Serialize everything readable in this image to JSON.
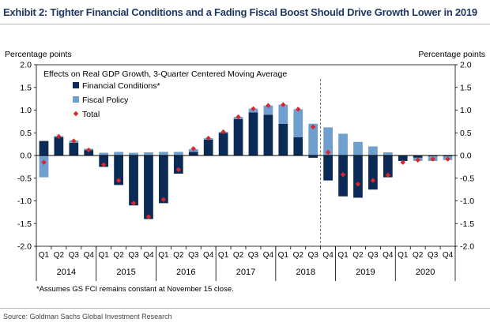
{
  "title": "Exhibit 2: Tighter Financial Conditions and a Fading Fiscal Boost Should Drive Growth Lower in 2019",
  "source": "Source: Goldman Sachs Global Investment Research",
  "colors": {
    "financial": "#0b2a55",
    "fiscal": "#6f9fcf",
    "total": "#d7262e",
    "axis": "#000000",
    "divider": "#555555"
  },
  "chart_data": {
    "type": "bar",
    "subtitle": "Effects on Real GDP Growth, 3-Quarter Centered Moving Average",
    "ylabel_left": "Percentage points",
    "ylabel_right": "Percentage points",
    "ylim": [
      -2.0,
      2.0
    ],
    "yticks": [
      "2.0",
      "1.5",
      "1.0",
      "0.5",
      "0.0",
      "-0.5",
      "-1.0",
      "-1.5",
      "-2.0"
    ],
    "ytick_values": [
      2.0,
      1.5,
      1.0,
      0.5,
      0.0,
      -0.5,
      -1.0,
      -1.5,
      -2.0
    ],
    "categories": [
      "Q1",
      "Q2",
      "Q3",
      "Q4",
      "Q1",
      "Q2",
      "Q3",
      "Q4",
      "Q1",
      "Q2",
      "Q3",
      "Q4",
      "Q1",
      "Q2",
      "Q3",
      "Q4",
      "Q1",
      "Q2",
      "Q3",
      "Q4",
      "Q1",
      "Q2",
      "Q3",
      "Q4",
      "Q1",
      "Q2",
      "Q3",
      "Q4"
    ],
    "years": [
      "2014",
      "2015",
      "2016",
      "2017",
      "2018",
      "2019",
      "2020"
    ],
    "forecast_note": "*Assumes GS FCI remains constant at November 15 close.",
    "grid": false,
    "legend_position": "top-left",
    "series": [
      {
        "name": "Financial Conditions*",
        "kind": "stacked-bar",
        "values": [
          0.32,
          0.4,
          0.28,
          0.12,
          -0.25,
          -0.65,
          -1.1,
          -1.4,
          -1.05,
          -0.4,
          0.08,
          0.35,
          0.5,
          0.8,
          0.95,
          0.9,
          0.7,
          0.4,
          -0.05,
          -0.55,
          -0.9,
          -0.93,
          -0.75,
          -0.48,
          -0.12,
          -0.05,
          -0.02,
          -0.02
        ]
      },
      {
        "name": "Fiscal Policy",
        "kind": "stacked-bar",
        "values": [
          -0.48,
          0.03,
          0.05,
          0.03,
          0.06,
          0.08,
          0.06,
          0.07,
          0.08,
          0.08,
          0.06,
          0.03,
          0.02,
          0.05,
          0.08,
          0.2,
          0.42,
          0.62,
          0.7,
          0.62,
          0.48,
          0.3,
          0.2,
          0.07,
          0.0,
          -0.07,
          -0.1,
          -0.08
        ]
      },
      {
        "name": "Total",
        "kind": "marker",
        "values": [
          -0.15,
          0.42,
          0.32,
          0.12,
          -0.2,
          -0.55,
          -1.05,
          -1.35,
          -0.97,
          -0.31,
          0.15,
          0.38,
          0.52,
          0.85,
          1.03,
          1.1,
          1.12,
          1.02,
          0.63,
          0.07,
          -0.42,
          -0.63,
          -0.55,
          -0.43,
          -0.15,
          -0.1,
          -0.08,
          -0.08
        ]
      }
    ]
  }
}
